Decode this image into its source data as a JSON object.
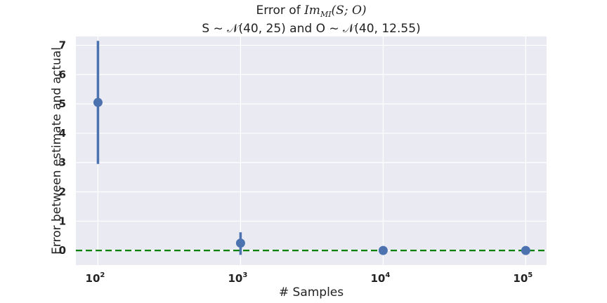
{
  "chart_data": {
    "type": "scatter",
    "title_line1_prefix": "Error of ",
    "title_line1_math": "Im",
    "title_line1_sub": "MI",
    "title_line1_suffix": "(S; O)",
    "title_line2": "S ~ 𝒩(40, 25) and O ~ 𝒩(40, 12.55)",
    "xlabel": "# Samples",
    "ylabel": "Error between estimate and actual",
    "x_scale": "log",
    "xlim": [
      70,
      140000
    ],
    "ylim": [
      -0.5,
      7.3
    ],
    "x_ticks": [
      {
        "value": 100,
        "base": "10",
        "exp": "2"
      },
      {
        "value": 1000,
        "base": "10",
        "exp": "3"
      },
      {
        "value": 10000,
        "base": "10",
        "exp": "4"
      },
      {
        "value": 100000,
        "base": "10",
        "exp": "5"
      }
    ],
    "y_ticks": [
      0,
      1,
      2,
      3,
      4,
      5,
      6,
      7
    ],
    "grid": true,
    "series": [
      {
        "x": [
          100,
          1000,
          10000,
          100000
        ],
        "y": [
          5.05,
          0.25,
          0.0,
          0.0
        ],
        "yerr_low": [
          2.95,
          -0.15,
          0.0,
          0.0
        ],
        "yerr_high": [
          7.15,
          0.62,
          0.0,
          0.0
        ],
        "color": "#4c72b0"
      }
    ],
    "reference_line": {
      "y": 0,
      "color": "#008000",
      "style": "dashed"
    },
    "background": "#eaeaf2",
    "grid_color": "#ffffff"
  }
}
